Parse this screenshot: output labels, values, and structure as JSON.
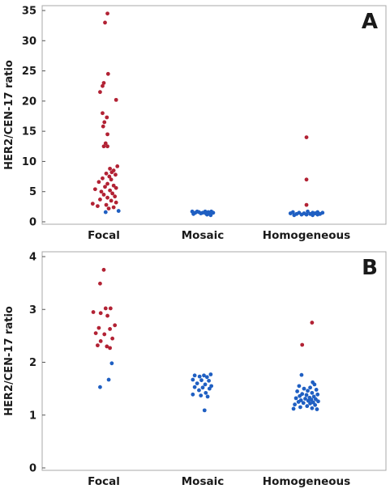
{
  "chart_data": [
    {
      "type": "scatter",
      "panel_label": "A",
      "ylabel": "HER2/CEN-17 ratio",
      "xlabel": "",
      "categories": [
        "Focal",
        "Mosaic",
        "Homogeneous"
      ],
      "ylim": [
        0,
        35
      ],
      "yticks": [
        0,
        5,
        10,
        15,
        20,
        25,
        30,
        35
      ],
      "grid": false,
      "series": [
        {
          "color": "#b22234",
          "points": [
            {
              "c": 0,
              "y": 34.5,
              "j": 0.06
            },
            {
              "c": 0,
              "y": 33.0,
              "j": 0.02
            },
            {
              "c": 0,
              "y": 24.5,
              "j": 0.07
            },
            {
              "c": 0,
              "y": 23.0,
              "j": 0.0
            },
            {
              "c": 0,
              "y": 22.5,
              "j": -0.02
            },
            {
              "c": 0,
              "y": 21.5,
              "j": -0.06
            },
            {
              "c": 0,
              "y": 20.2,
              "j": 0.2
            },
            {
              "c": 0,
              "y": 18.0,
              "j": -0.02
            },
            {
              "c": 0,
              "y": 17.3,
              "j": 0.05
            },
            {
              "c": 0,
              "y": 16.5,
              "j": 0.01
            },
            {
              "c": 0,
              "y": 15.8,
              "j": -0.01
            },
            {
              "c": 0,
              "y": 14.5,
              "j": 0.06
            },
            {
              "c": 0,
              "y": 13.0,
              "j": 0.03
            },
            {
              "c": 0,
              "y": 12.5,
              "j": 0.0
            },
            {
              "c": 0,
              "y": 12.5,
              "j": 0.06
            },
            {
              "c": 0,
              "y": 9.2,
              "j": 0.22
            },
            {
              "c": 0,
              "y": 8.8,
              "j": 0.1
            },
            {
              "c": 0,
              "y": 8.5,
              "j": 0.16
            },
            {
              "c": 0,
              "y": 8.2,
              "j": 0.13
            },
            {
              "c": 0,
              "y": 8.0,
              "j": 0.04
            },
            {
              "c": 0,
              "y": 7.8,
              "j": 0.19
            },
            {
              "c": 0,
              "y": 7.5,
              "j": 0.09
            },
            {
              "c": 0,
              "y": 7.2,
              "j": -0.02
            },
            {
              "c": 0,
              "y": 7.0,
              "j": 0.12
            },
            {
              "c": 0,
              "y": 6.6,
              "j": -0.08
            },
            {
              "c": 0,
              "y": 6.3,
              "j": 0.06
            },
            {
              "c": 0,
              "y": 6.0,
              "j": 0.16
            },
            {
              "c": 0,
              "y": 5.8,
              "j": 0.02
            },
            {
              "c": 0,
              "y": 5.6,
              "j": 0.2
            },
            {
              "c": 0,
              "y": 5.4,
              "j": -0.14
            },
            {
              "c": 0,
              "y": 5.2,
              "j": 0.1
            },
            {
              "c": 0,
              "y": 5.0,
              "j": -0.04
            },
            {
              "c": 0,
              "y": 4.7,
              "j": 0.14
            },
            {
              "c": 0,
              "y": 4.5,
              "j": 0.0
            },
            {
              "c": 0,
              "y": 4.2,
              "j": 0.18
            },
            {
              "c": 0,
              "y": 4.0,
              "j": 0.06
            },
            {
              "c": 0,
              "y": 3.7,
              "j": -0.06
            },
            {
              "c": 0,
              "y": 3.5,
              "j": 0.12
            },
            {
              "c": 0,
              "y": 3.2,
              "j": 0.2
            },
            {
              "c": 0,
              "y": 3.0,
              "j": -0.18
            },
            {
              "c": 0,
              "y": 2.8,
              "j": 0.04
            },
            {
              "c": 0,
              "y": 2.6,
              "j": -0.1
            },
            {
              "c": 0,
              "y": 2.4,
              "j": 0.16
            },
            {
              "c": 0,
              "y": 2.2,
              "j": 0.08
            },
            {
              "c": 2,
              "y": 14.0,
              "j": 0.0
            },
            {
              "c": 2,
              "y": 7.0,
              "j": 0.0
            },
            {
              "c": 2,
              "y": 2.8,
              "j": 0.0
            }
          ]
        },
        {
          "color": "#1f5fc2",
          "points": [
            {
              "c": 0,
              "y": 1.8,
              "j": 0.24
            },
            {
              "c": 0,
              "y": 1.6,
              "j": 0.03
            },
            {
              "c": 1,
              "y": 1.7,
              "j": -0.17
            },
            {
              "c": 1,
              "y": 1.7,
              "j": -0.09
            },
            {
              "c": 1,
              "y": 1.7,
              "j": 0.04
            },
            {
              "c": 1,
              "y": 1.7,
              "j": 0.14
            },
            {
              "c": 1,
              "y": 1.6,
              "j": -0.06
            },
            {
              "c": 1,
              "y": 1.6,
              "j": 0.09
            },
            {
              "c": 1,
              "y": 1.5,
              "j": -0.12
            },
            {
              "c": 1,
              "y": 1.5,
              "j": 0.0
            },
            {
              "c": 1,
              "y": 1.5,
              "j": 0.17
            },
            {
              "c": 1,
              "y": 1.4,
              "j": 0.05
            },
            {
              "c": 1,
              "y": 1.4,
              "j": -0.03
            },
            {
              "c": 1,
              "y": 1.3,
              "j": 0.11
            },
            {
              "c": 1,
              "y": 1.3,
              "j": -0.15
            },
            {
              "c": 1,
              "y": 1.2,
              "j": 0.07
            },
            {
              "c": 1,
              "y": 1.1,
              "j": 0.13
            },
            {
              "c": 2,
              "y": 1.7,
              "j": 0.02
            },
            {
              "c": 2,
              "y": 1.6,
              "j": 0.18
            },
            {
              "c": 2,
              "y": 1.6,
              "j": -0.22
            },
            {
              "c": 2,
              "y": 1.5,
              "j": 0.1
            },
            {
              "c": 2,
              "y": 1.5,
              "j": -0.12
            },
            {
              "c": 2,
              "y": 1.5,
              "j": 0.26
            },
            {
              "c": 2,
              "y": 1.4,
              "j": -0.04
            },
            {
              "c": 2,
              "y": 1.4,
              "j": 0.14
            },
            {
              "c": 2,
              "y": 1.4,
              "j": -0.26
            },
            {
              "c": 2,
              "y": 1.3,
              "j": 0.06
            },
            {
              "c": 2,
              "y": 1.3,
              "j": -0.16
            },
            {
              "c": 2,
              "y": 1.3,
              "j": 0.22
            },
            {
              "c": 2,
              "y": 1.2,
              "j": -0.08
            },
            {
              "c": 2,
              "y": 1.2,
              "j": 0.0
            },
            {
              "c": 2,
              "y": 1.2,
              "j": 0.18
            },
            {
              "c": 2,
              "y": 1.1,
              "j": -0.2
            },
            {
              "c": 2,
              "y": 1.1,
              "j": 0.1
            }
          ]
        }
      ]
    },
    {
      "type": "scatter",
      "panel_label": "B",
      "ylabel": "HER2/CEN-17 ratio",
      "xlabel": "",
      "categories": [
        "Focal",
        "Mosaic",
        "Homogeneous"
      ],
      "ylim": [
        0,
        4
      ],
      "yticks": [
        0,
        1,
        2,
        3,
        4
      ],
      "grid": false,
      "series": [
        {
          "color": "#b22234",
          "points": [
            {
              "c": 0,
              "y": 3.75,
              "j": 0.0
            },
            {
              "c": 0,
              "y": 3.49,
              "j": -0.06
            },
            {
              "c": 0,
              "y": 3.02,
              "j": 0.03
            },
            {
              "c": 0,
              "y": 3.02,
              "j": 0.11
            },
            {
              "c": 0,
              "y": 2.95,
              "j": -0.17
            },
            {
              "c": 0,
              "y": 2.93,
              "j": -0.05
            },
            {
              "c": 0,
              "y": 2.88,
              "j": 0.06
            },
            {
              "c": 0,
              "y": 2.7,
              "j": 0.18
            },
            {
              "c": 0,
              "y": 2.65,
              "j": -0.08
            },
            {
              "c": 0,
              "y": 2.63,
              "j": 0.1
            },
            {
              "c": 0,
              "y": 2.55,
              "j": -0.13
            },
            {
              "c": 0,
              "y": 2.53,
              "j": 0.01
            },
            {
              "c": 0,
              "y": 2.45,
              "j": 0.14
            },
            {
              "c": 0,
              "y": 2.4,
              "j": -0.05
            },
            {
              "c": 0,
              "y": 2.32,
              "j": -0.1
            },
            {
              "c": 0,
              "y": 2.3,
              "j": 0.05
            },
            {
              "c": 0,
              "y": 2.27,
              "j": 0.1
            },
            {
              "c": 2,
              "y": 2.75,
              "j": 0.09
            },
            {
              "c": 2,
              "y": 2.33,
              "j": -0.07
            }
          ]
        },
        {
          "color": "#1f5fc2",
          "points": [
            {
              "c": 0,
              "y": 1.98,
              "j": 0.13
            },
            {
              "c": 0,
              "y": 1.67,
              "j": 0.08
            },
            {
              "c": 0,
              "y": 1.53,
              "j": -0.06
            },
            {
              "c": 1,
              "y": 1.77,
              "j": 0.13
            },
            {
              "c": 1,
              "y": 1.75,
              "j": -0.13
            },
            {
              "c": 1,
              "y": 1.75,
              "j": 0.02
            },
            {
              "c": 1,
              "y": 1.73,
              "j": -0.05
            },
            {
              "c": 1,
              "y": 1.72,
              "j": 0.07
            },
            {
              "c": 1,
              "y": 1.67,
              "j": -0.16
            },
            {
              "c": 1,
              "y": 1.66,
              "j": -0.02
            },
            {
              "c": 1,
              "y": 1.65,
              "j": 0.1
            },
            {
              "c": 1,
              "y": 1.6,
              "j": -0.09
            },
            {
              "c": 1,
              "y": 1.58,
              "j": 0.04
            },
            {
              "c": 1,
              "y": 1.55,
              "j": 0.14
            },
            {
              "c": 1,
              "y": 1.53,
              "j": -0.13
            },
            {
              "c": 1,
              "y": 1.52,
              "j": 0.0
            },
            {
              "c": 1,
              "y": 1.5,
              "j": 0.11
            },
            {
              "c": 1,
              "y": 1.47,
              "j": -0.06
            },
            {
              "c": 1,
              "y": 1.42,
              "j": 0.05
            },
            {
              "c": 1,
              "y": 1.39,
              "j": -0.16
            },
            {
              "c": 1,
              "y": 1.37,
              "j": -0.03
            },
            {
              "c": 1,
              "y": 1.35,
              "j": 0.08
            },
            {
              "c": 1,
              "y": 1.09,
              "j": 0.03
            },
            {
              "c": 2,
              "y": 1.76,
              "j": -0.08
            },
            {
              "c": 2,
              "y": 1.62,
              "j": 0.1
            },
            {
              "c": 2,
              "y": 1.58,
              "j": 0.13
            },
            {
              "c": 2,
              "y": 1.55,
              "j": -0.12
            },
            {
              "c": 2,
              "y": 1.52,
              "j": 0.06
            },
            {
              "c": 2,
              "y": 1.5,
              "j": -0.04
            },
            {
              "c": 2,
              "y": 1.48,
              "j": 0.16
            },
            {
              "c": 2,
              "y": 1.46,
              "j": 0.02
            },
            {
              "c": 2,
              "y": 1.45,
              "j": -0.15
            },
            {
              "c": 2,
              "y": 1.42,
              "j": 0.09
            },
            {
              "c": 2,
              "y": 1.4,
              "j": -0.07
            },
            {
              "c": 2,
              "y": 1.39,
              "j": 0.18
            },
            {
              "c": 2,
              "y": 1.38,
              "j": 0.0
            },
            {
              "c": 2,
              "y": 1.36,
              "j": -0.11
            },
            {
              "c": 2,
              "y": 1.35,
              "j": 0.12
            },
            {
              "c": 2,
              "y": 1.33,
              "j": 0.05
            },
            {
              "c": 2,
              "y": 1.32,
              "j": -0.17
            },
            {
              "c": 2,
              "y": 1.31,
              "j": -0.02
            },
            {
              "c": 2,
              "y": 1.3,
              "j": 0.15
            },
            {
              "c": 2,
              "y": 1.29,
              "j": 0.08
            },
            {
              "c": 2,
              "y": 1.28,
              "j": -0.09
            },
            {
              "c": 2,
              "y": 1.27,
              "j": 0.03
            },
            {
              "c": 2,
              "y": 1.26,
              "j": 0.19
            },
            {
              "c": 2,
              "y": 1.25,
              "j": -0.13
            },
            {
              "c": 2,
              "y": 1.24,
              "j": 0.11
            },
            {
              "c": 2,
              "y": 1.23,
              "j": -0.05
            },
            {
              "c": 2,
              "y": 1.22,
              "j": 0.06
            },
            {
              "c": 2,
              "y": 1.2,
              "j": -0.19
            },
            {
              "c": 2,
              "y": 1.19,
              "j": 0.14
            },
            {
              "c": 2,
              "y": 1.17,
              "j": 0.01
            },
            {
              "c": 2,
              "y": 1.15,
              "j": -0.1
            },
            {
              "c": 2,
              "y": 1.13,
              "j": 0.09
            },
            {
              "c": 2,
              "y": 1.12,
              "j": -0.21
            },
            {
              "c": 2,
              "y": 1.11,
              "j": 0.17
            }
          ]
        }
      ]
    }
  ]
}
